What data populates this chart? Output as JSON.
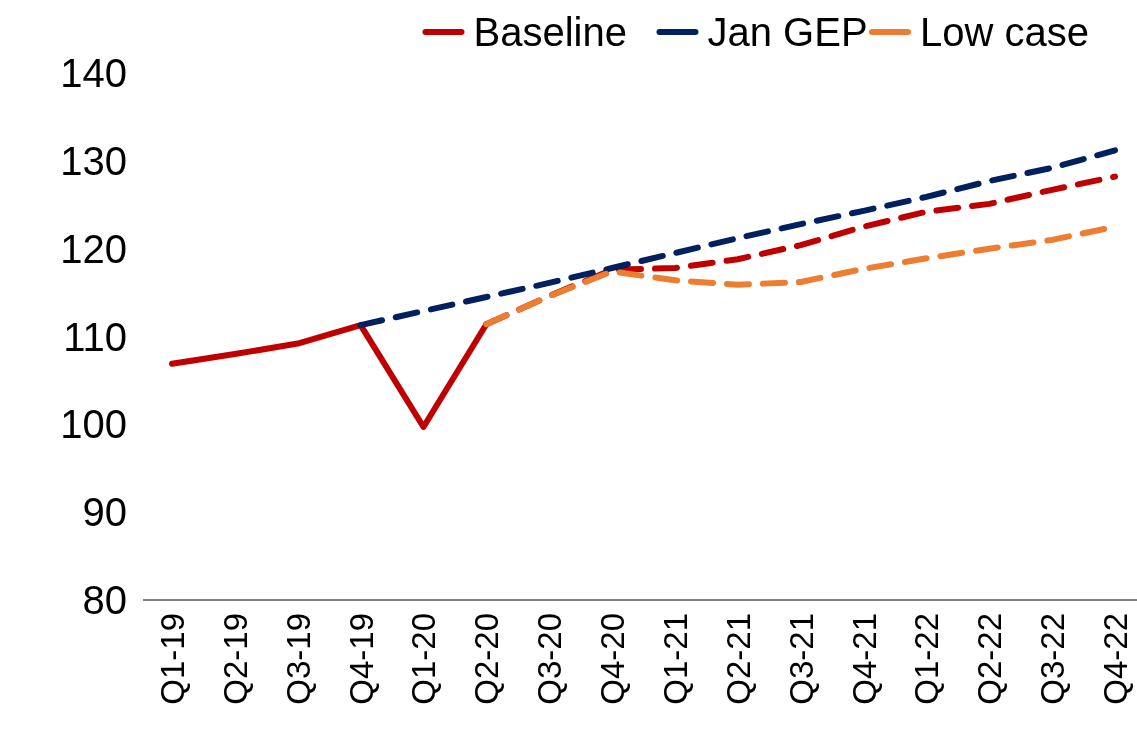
{
  "chart_data": {
    "type": "line",
    "categories": [
      "Q1-19",
      "Q2-19",
      "Q3-19",
      "Q4-19",
      "Q1-20",
      "Q2-20",
      "Q3-20",
      "Q4-20",
      "Q1-21",
      "Q2-21",
      "Q3-21",
      "Q4-21",
      "Q1-22",
      "Q2-22",
      "Q3-22",
      "Q4-22"
    ],
    "ylim": [
      80,
      140
    ],
    "yticks": [
      80,
      90,
      100,
      110,
      120,
      130,
      140
    ],
    "grid": false,
    "legend": "top right",
    "marker": "none",
    "series": [
      {
        "color": "#c00000",
        "line_style": "solid",
        "values": [
          106.9,
          108.0,
          109.2,
          111.3,
          99.7,
          111.4,
          null,
          null,
          null,
          null,
          null,
          null,
          null,
          null,
          null,
          null
        ]
      },
      {
        "name": "Baseline",
        "color": "#c00000",
        "line_style": "dashed",
        "values": [
          null,
          null,
          null,
          null,
          null,
          111.4,
          114.6,
          117.6,
          117.8,
          118.8,
          120.4,
          122.5,
          124.2,
          125.1,
          126.7,
          128.2
        ]
      },
      {
        "name": "Jan GEP",
        "color": "#002060",
        "line_style": "dashed",
        "values": [
          null,
          null,
          null,
          111.3,
          112.9,
          114.5,
          116.1,
          117.8,
          119.5,
          121.2,
          122.8,
          124.3,
          125.9,
          127.7,
          129.2,
          131.2
        ]
      },
      {
        "name": "Low case",
        "color": "#ed7d31",
        "line_style": "dashed",
        "values": [
          null,
          null,
          null,
          null,
          null,
          111.4,
          114.6,
          117.4,
          116.4,
          115.9,
          116.2,
          117.7,
          118.9,
          120.0,
          121.0,
          122.5
        ]
      }
    ]
  }
}
